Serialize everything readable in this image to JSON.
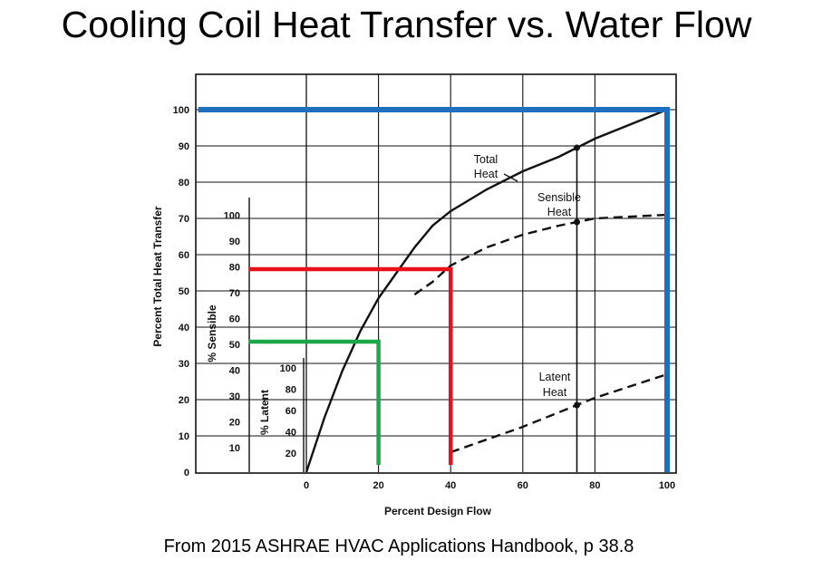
{
  "slide": {
    "title": "Cooling Coil Heat Transfer vs. Water Flow",
    "caption": "From 2015 ASHRAE HVAC Applications Handbook, p 38.8"
  },
  "chart_data": {
    "type": "line",
    "xlabel": "Percent Design Flow",
    "ylabel": "Percent Total Heat Transfer",
    "xlim": [
      0,
      100
    ],
    "ylim": [
      0,
      100
    ],
    "x_ticks": [
      "0",
      "20",
      "40",
      "60",
      "80",
      "100"
    ],
    "y_ticks": [
      "0",
      "10",
      "20",
      "30",
      "40",
      "50",
      "60",
      "70",
      "80",
      "90",
      "100"
    ],
    "grid": true,
    "inner_axes": [
      {
        "label": "% Sensible",
        "ticks": [
          "10",
          "20",
          "30",
          "40",
          "50",
          "60",
          "70",
          "80",
          "90",
          "100"
        ]
      },
      {
        "label": "% Latent",
        "ticks": [
          "20",
          "40",
          "60",
          "80",
          "100"
        ]
      }
    ],
    "series": [
      {
        "name": "Total Heat",
        "style": "solid",
        "x": [
          0,
          5,
          10,
          15,
          20,
          25,
          30,
          35,
          40,
          50,
          60,
          70,
          75,
          80,
          90,
          100
        ],
        "y": [
          0,
          15,
          28,
          39,
          48,
          55,
          62,
          68,
          72,
          78,
          83,
          87,
          89.5,
          92,
          96,
          100
        ]
      },
      {
        "name": "Sensible Heat",
        "style": "dashed",
        "x": [
          30,
          35,
          40,
          50,
          60,
          70,
          75,
          80,
          90,
          100
        ],
        "y": [
          49,
          52.5,
          57,
          62,
          65.5,
          68,
          69,
          70,
          70.5,
          71
        ]
      },
      {
        "name": "Latent Heat",
        "style": "dashed",
        "x": [
          40,
          60,
          75,
          80,
          100
        ],
        "y": [
          5.5,
          12.5,
          18.5,
          20.5,
          27
        ]
      }
    ],
    "overlay_lines": [
      {
        "color": "#1f6fc1",
        "points": [
          [
            -30,
            100
          ],
          [
            100,
            100
          ],
          [
            100,
            0
          ]
        ]
      },
      {
        "color": "#e8101a",
        "points": [
          [
            -16,
            56
          ],
          [
            40,
            56
          ],
          [
            40,
            2
          ]
        ]
      },
      {
        "color": "#1aa84b",
        "points": [
          [
            -16,
            36
          ],
          [
            20,
            36
          ],
          [
            20,
            2
          ]
        ]
      }
    ]
  }
}
